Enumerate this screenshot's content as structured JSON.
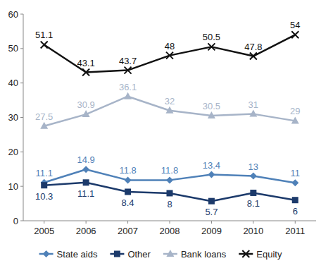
{
  "chart_data": {
    "type": "line",
    "categories": [
      "2005",
      "2006",
      "2007",
      "2008",
      "2009",
      "2010",
      "2011"
    ],
    "series": [
      {
        "name": "State aids",
        "color": "#4f81b8",
        "marker": "diamond",
        "values": [
          11.1,
          14.9,
          11.8,
          11.8,
          13.4,
          13,
          11
        ]
      },
      {
        "name": "Other",
        "color": "#1c3a6b",
        "marker": "square",
        "values": [
          10.3,
          11.1,
          8.4,
          8,
          5.7,
          8.1,
          6
        ]
      },
      {
        "name": "Bank loans",
        "color": "#a7b4c8",
        "marker": "triangle",
        "values": [
          27.5,
          30.9,
          36.1,
          32,
          30.5,
          31,
          29
        ]
      },
      {
        "name": "Equity",
        "color": "#111111",
        "marker": "x",
        "values": [
          51.1,
          43.1,
          43.7,
          48,
          50.5,
          47.8,
          54
        ]
      }
    ],
    "ylim": [
      0,
      60
    ],
    "yticks": [
      0,
      10,
      20,
      30,
      40,
      50,
      60
    ],
    "grid": false,
    "legend": "bottom",
    "data_labels": true
  }
}
